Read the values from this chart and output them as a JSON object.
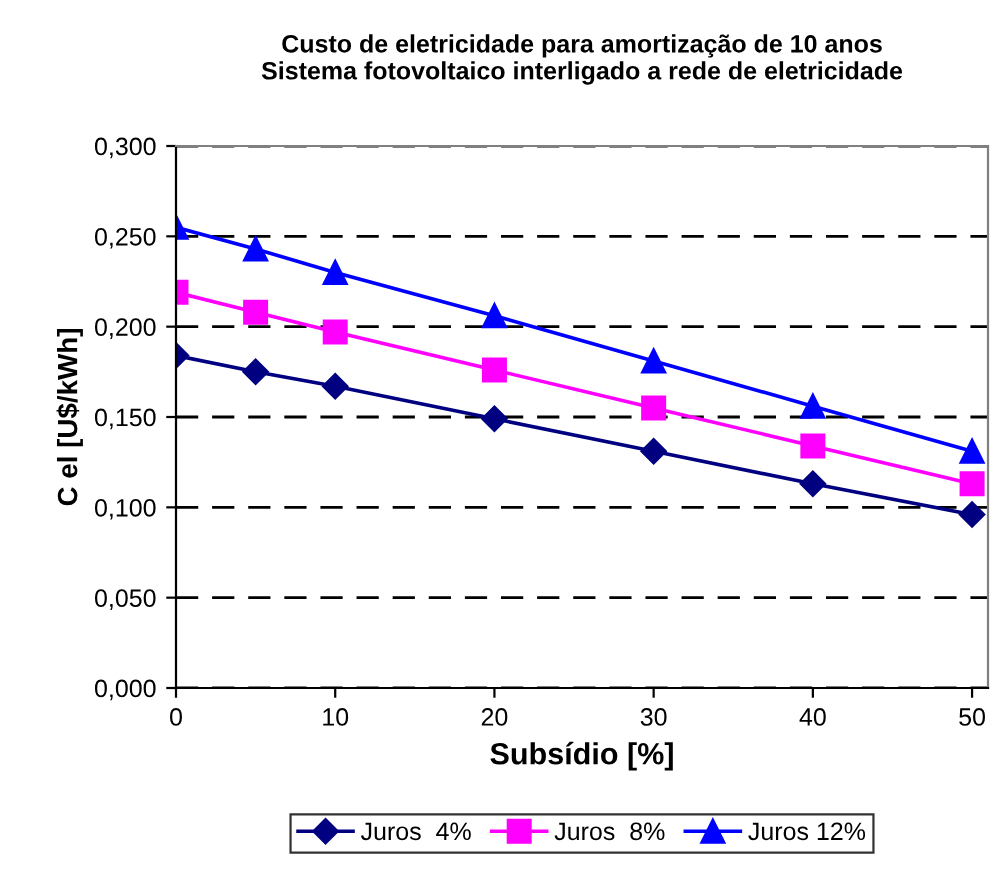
{
  "chart_data": {
    "type": "line",
    "title": "Custo de eletricidade para amortização de 10 anos\nSistema fotovoltaico interligado a rede de eletricidade",
    "xlabel": "Subsídio [%]",
    "ylabel": "C el [U$/kWh]",
    "x": [
      0,
      5,
      10,
      20,
      30,
      40,
      50
    ],
    "series": [
      {
        "name": "Juros  4%",
        "color": "#000080",
        "marker": "diamond",
        "values": [
          0.184,
          0.175,
          0.167,
          0.149,
          0.131,
          0.113,
          0.096
        ]
      },
      {
        "name": "Juros  8%",
        "color": "#ff00ff",
        "marker": "square",
        "values": [
          0.219,
          0.208,
          0.197,
          0.176,
          0.155,
          0.134,
          0.113
        ]
      },
      {
        "name": "Juros 12%",
        "color": "#0000ff",
        "marker": "triangle",
        "values": [
          0.255,
          0.243,
          0.23,
          0.206,
          0.181,
          0.156,
          0.131
        ]
      }
    ],
    "xlim": [
      0,
      51
    ],
    "xticks": [
      0,
      10,
      20,
      30,
      40,
      50
    ],
    "ylim": [
      0,
      0.3
    ],
    "yticks": [
      {
        "value": 0,
        "label": "0,000"
      },
      {
        "value": 0.05,
        "label": "0,050"
      },
      {
        "value": 0.1,
        "label": "0,100"
      },
      {
        "value": 0.15,
        "label": "0,150"
      },
      {
        "value": 0.2,
        "label": "0,200"
      },
      {
        "value": 0.25,
        "label": "0,250"
      },
      {
        "value": 0.3,
        "label": "0,300"
      }
    ],
    "grid": "y",
    "line_style": "solid",
    "legend": "bottom"
  }
}
